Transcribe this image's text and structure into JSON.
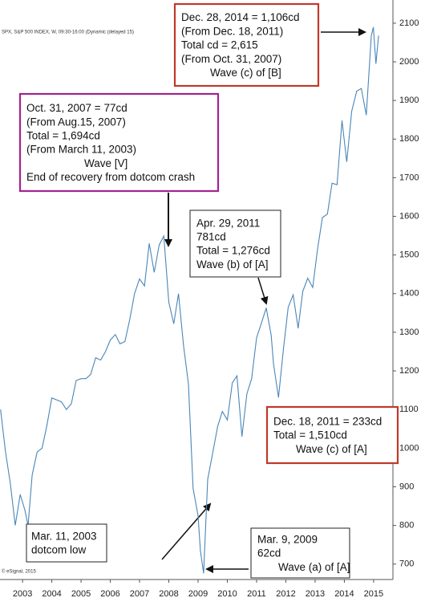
{
  "chart_data": {
    "type": "line",
    "header": "SPX, S&P 500 INDEX, W, 09:30-16:00 (Dynamic (delayed 15)",
    "footer": "© eSignal, 2015",
    "x": [
      2002.25,
      2002.42,
      2002.58,
      2002.75,
      2002.92,
      2003.08,
      2003.19,
      2003.33,
      2003.5,
      2003.67,
      2003.83,
      2004.0,
      2004.17,
      2004.33,
      2004.5,
      2004.67,
      2004.83,
      2005.0,
      2005.17,
      2005.33,
      2005.5,
      2005.67,
      2005.83,
      2006.0,
      2006.17,
      2006.33,
      2006.5,
      2006.67,
      2006.83,
      2007.0,
      2007.17,
      2007.33,
      2007.5,
      2007.67,
      2007.83,
      2008.0,
      2008.17,
      2008.33,
      2008.5,
      2008.67,
      2008.83,
      2009.0,
      2009.08,
      2009.19,
      2009.33,
      2009.5,
      2009.67,
      2009.83,
      2010.0,
      2010.17,
      2010.33,
      2010.5,
      2010.67,
      2010.83,
      2011.0,
      2011.17,
      2011.33,
      2011.5,
      2011.58,
      2011.75,
      2011.92,
      2012.08,
      2012.25,
      2012.42,
      2012.58,
      2012.75,
      2012.92,
      2013.08,
      2013.25,
      2013.42,
      2013.58,
      2013.75,
      2013.92,
      2014.08,
      2014.25,
      2014.42,
      2014.58,
      2014.75,
      2014.92,
      2014.99,
      2015.08,
      2015.17
    ],
    "series": [
      {
        "name": "S&P 500",
        "color": "#4a86b8",
        "values": [
          1100,
          990,
          910,
          800,
          880,
          840,
          800,
          930,
          990,
          1000,
          1058,
          1130,
          1125,
          1120,
          1100,
          1115,
          1175,
          1180,
          1180,
          1191,
          1234,
          1228,
          1249,
          1280,
          1294,
          1270,
          1276,
          1335,
          1400,
          1438,
          1420,
          1530,
          1455,
          1526,
          1549,
          1378,
          1322,
          1400,
          1267,
          1166,
          896,
          825,
          735,
          676,
          919,
          987,
          1057,
          1095,
          1073,
          1169,
          1187,
          1030,
          1141,
          1180,
          1286,
          1325,
          1363,
          1292,
          1218,
          1131,
          1257,
          1365,
          1397,
          1310,
          1406,
          1440,
          1416,
          1514,
          1597,
          1606,
          1686,
          1682,
          1848,
          1741,
          1872,
          1924,
          1931,
          1862,
          2067,
          2090,
          1995,
          2068
        ]
      }
    ],
    "xlim": [
      2002.23,
      2015.66
    ],
    "xticks": [
      2003,
      2004,
      2005,
      2006,
      2007,
      2008,
      2009,
      2010,
      2011,
      2012,
      2013,
      2014,
      2015
    ],
    "ylim": [
      660,
      2160
    ],
    "yticks": [
      700,
      800,
      900,
      1000,
      1100,
      1200,
      1300,
      1400,
      1500,
      1600,
      1700,
      1800,
      1900,
      2000,
      2100
    ],
    "grid": false,
    "annotations": [
      {
        "border_color": "#c0392b",
        "lines": [
          "Dec. 28, 2014 = 1,106cd",
          "(From Dec. 18, 2011)",
          "Total cd = 2,615",
          "(From Oct. 31, 2007)",
          "Wave (c) of [B]"
        ]
      },
      {
        "border_color": "#a2238f",
        "lines": [
          "Oct. 31, 2007 = 77cd",
          "(From Aug.15, 2007)",
          "Total = 1,694cd",
          "(From March 11, 2003)",
          "Wave [V]",
          "End of recovery from dotcom crash"
        ]
      },
      {
        "border_color": "#222222",
        "lines": [
          "Apr. 29, 2011",
          "781cd",
          "Total = 1,276cd",
          "Wave (b) of [A]"
        ]
      },
      {
        "border_color": "#c0392b",
        "lines": [
          "Dec. 18, 2011 = 233cd",
          "Total = 1,510cd",
          "Wave (c) of [A]"
        ]
      },
      {
        "border_color": "#222222",
        "lines": [
          "Mar. 11, 2003",
          "dotcom low"
        ]
      },
      {
        "border_color": "#222222",
        "lines": [
          "Mar. 9, 2009",
          "62cd",
          "Wave (a) of [A]"
        ]
      }
    ]
  }
}
